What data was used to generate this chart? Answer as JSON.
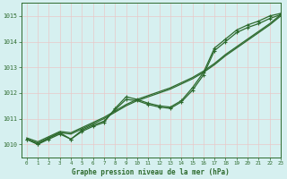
{
  "bg_color": "#d6f0f0",
  "grid_color": "#c8e8e8",
  "line_color": "#2d6a2d",
  "xlabel": "Graphe pression niveau de la mer (hPa)",
  "ylim": [
    1009.5,
    1015.5
  ],
  "xlim": [
    -0.5,
    23
  ],
  "yticks": [
    1010,
    1011,
    1012,
    1013,
    1014,
    1015
  ],
  "xticks": [
    0,
    1,
    2,
    3,
    4,
    5,
    6,
    7,
    8,
    9,
    10,
    11,
    12,
    13,
    14,
    15,
    16,
    17,
    18,
    19,
    20,
    21,
    22,
    23
  ],
  "smooth1": [
    1010.25,
    1010.1,
    1010.3,
    1010.5,
    1010.45,
    1010.65,
    1010.85,
    1011.05,
    1011.3,
    1011.55,
    1011.75,
    1011.9,
    1012.05,
    1012.2,
    1012.4,
    1012.6,
    1012.85,
    1013.15,
    1013.5,
    1013.8,
    1014.1,
    1014.4,
    1014.7,
    1015.05
  ],
  "smooth2": [
    1010.2,
    1010.05,
    1010.25,
    1010.45,
    1010.4,
    1010.6,
    1010.8,
    1011.0,
    1011.25,
    1011.5,
    1011.7,
    1011.85,
    1012.0,
    1012.15,
    1012.35,
    1012.55,
    1012.8,
    1013.1,
    1013.45,
    1013.75,
    1014.05,
    1014.35,
    1014.65,
    1015.0
  ],
  "marker1_x": [
    0,
    1,
    2,
    3,
    4,
    5,
    6,
    7,
    8,
    9,
    10,
    11,
    12,
    13,
    14,
    15,
    16,
    17,
    18,
    19,
    20,
    21,
    22,
    23
  ],
  "marker1_y": [
    1010.2,
    1010.0,
    1010.2,
    1010.4,
    1010.2,
    1010.5,
    1010.7,
    1010.85,
    1011.4,
    1011.85,
    1011.75,
    1011.6,
    1011.5,
    1011.45,
    1011.7,
    1012.2,
    1012.8,
    1013.75,
    1014.1,
    1014.45,
    1014.65,
    1014.8,
    1015.0,
    1015.1
  ],
  "marker2_x": [
    0,
    1,
    2,
    3,
    4,
    5,
    6,
    7,
    8,
    9,
    10,
    11,
    12,
    13,
    14,
    15,
    16,
    17,
    18,
    19,
    20,
    21,
    22,
    23
  ],
  "marker2_y": [
    1010.2,
    1010.0,
    1010.25,
    1010.45,
    1010.2,
    1010.55,
    1010.75,
    1010.9,
    1011.35,
    1011.75,
    1011.7,
    1011.55,
    1011.45,
    1011.4,
    1011.65,
    1012.1,
    1012.7,
    1013.65,
    1014.0,
    1014.35,
    1014.55,
    1014.7,
    1014.9,
    1015.05
  ]
}
